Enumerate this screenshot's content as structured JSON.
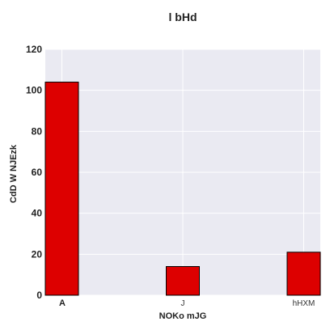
{
  "chart_data": {
    "type": "bar",
    "title": "l bHd",
    "xlabel": "NOKo mJG",
    "ylabel": "CdD W NJEzk",
    "categories": [
      "A",
      "J",
      "hHXM"
    ],
    "values": [
      104,
      14,
      21
    ],
    "ylim": [
      0,
      120
    ],
    "yticks": [
      0,
      20,
      40,
      60,
      80,
      100,
      120
    ],
    "grid": true,
    "bar_color": "#dd0000",
    "bar_edge_color": "#000000",
    "plot_background": "#eaeaf2"
  }
}
